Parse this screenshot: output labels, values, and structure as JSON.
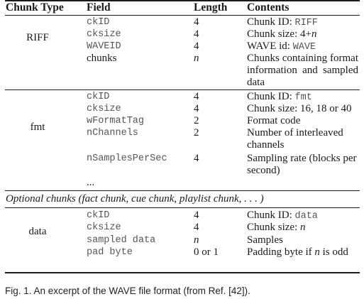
{
  "header": {
    "chunk_type": "Chunk Type",
    "field": "Field",
    "length": "Length",
    "contents": "Contents"
  },
  "riff": {
    "chunk_type": "RIFF",
    "rows": [
      {
        "field": "ckID",
        "length": "4",
        "contents_prefix": "Chunk ID: ",
        "contents_code": "RIFF"
      },
      {
        "field": "cksize",
        "length": "4",
        "contents_prefix": "Chunk size: 4+",
        "contents_var": "n"
      },
      {
        "field": "WAVEID",
        "length": "4",
        "contents_prefix": "WAVE id: ",
        "contents_code": "WAVE"
      },
      {
        "field": "chunks",
        "length": "n",
        "contents": "Chunks containing format information and sampled data"
      }
    ]
  },
  "fmt": {
    "chunk_type": "fmt",
    "rows": [
      {
        "field": "ckID",
        "length": "4",
        "contents_prefix": "Chunk ID: ",
        "contents_code": "fmt"
      },
      {
        "field": "cksize",
        "length": "4",
        "contents": "Chunk size: 16, 18 or 40"
      },
      {
        "field": "wFormatTag",
        "length": "2",
        "contents": "Format code"
      },
      {
        "field": "nChannels",
        "length": "2",
        "contents": "Number of interleaved channels"
      },
      {
        "field": "nSamplesPerSec",
        "length": "4",
        "contents": "Sampling rate (blocks per second)"
      },
      {
        "field": "..."
      }
    ]
  },
  "optional_chunks": "Optional chunks (fact chunk, cue chunk, playlist chunk, . . . )",
  "data_chunk": {
    "chunk_type": "data",
    "rows": [
      {
        "field": "ckID",
        "length": "4",
        "contents_prefix": "Chunk ID: ",
        "contents_code": "data"
      },
      {
        "field": "cksize",
        "length": "4",
        "contents_prefix": "Chunk size: ",
        "contents_var": "n"
      },
      {
        "field": "sampled data",
        "length": "n",
        "contents": "Samples"
      },
      {
        "field": "pad byte",
        "length": "0 or 1",
        "contents_prefix": "Padding byte if ",
        "contents_var": "n",
        "contents_suffix": " is odd"
      }
    ]
  },
  "caption": "Fig. 1. An excerpt of the WAVE file format (from Ref. [42])."
}
